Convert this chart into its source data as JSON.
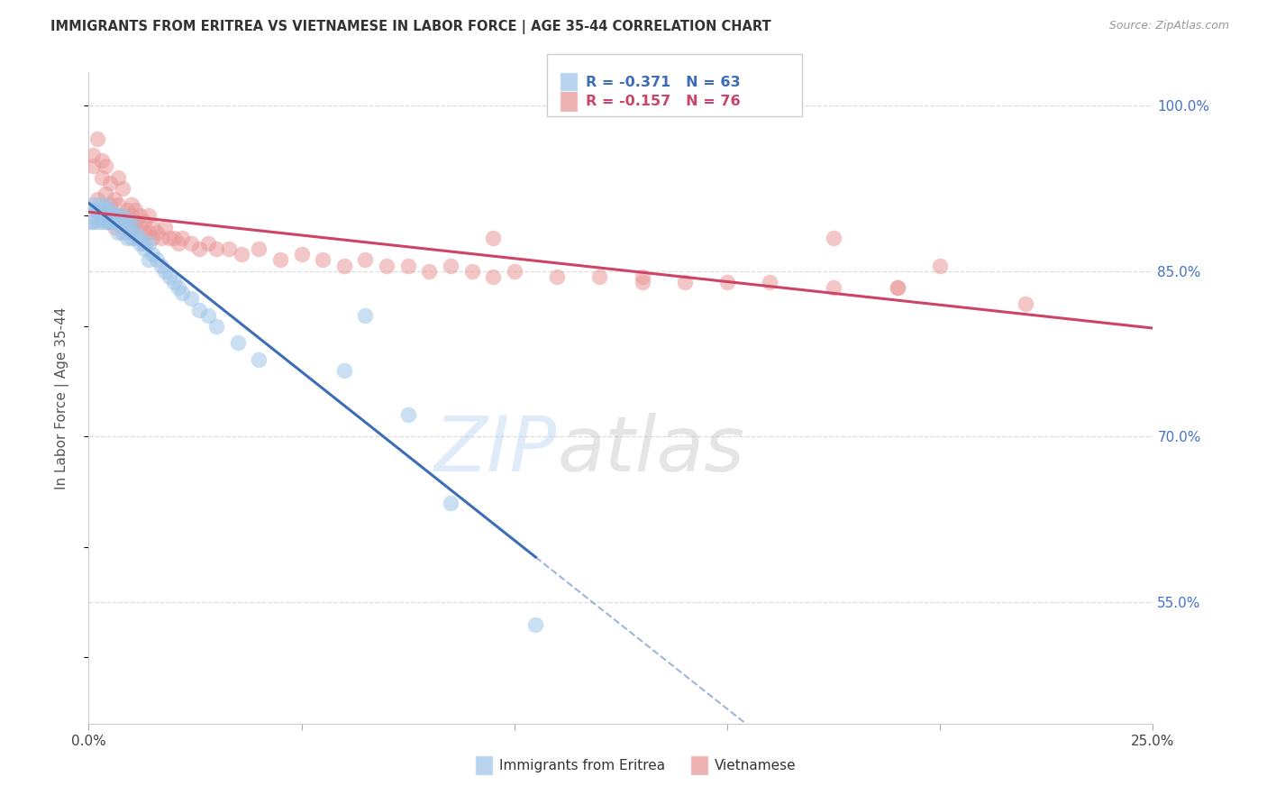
{
  "title": "IMMIGRANTS FROM ERITREA VS VIETNAMESE IN LABOR FORCE | AGE 35-44 CORRELATION CHART",
  "source": "Source: ZipAtlas.com",
  "ylabel": "In Labor Force | Age 35-44",
  "xlim": [
    0.0,
    0.25
  ],
  "ylim": [
    0.44,
    1.03
  ],
  "yticks_right": [
    0.55,
    0.7,
    0.85,
    1.0
  ],
  "ytick_right_labels": [
    "55.0%",
    "70.0%",
    "85.0%",
    "100.0%"
  ],
  "legend_blue_r": "R = -0.371",
  "legend_blue_n": "N = 63",
  "legend_pink_r": "R = -0.157",
  "legend_pink_n": "N = 76",
  "label_eritrea": "Immigrants from Eritrea",
  "label_vietnamese": "Vietnamese",
  "blue_scatter_color": "#9fc5e8",
  "pink_scatter_color": "#ea9999",
  "blue_line_color": "#3d6eb5",
  "pink_line_color": "#cc4466",
  "eritrea_x": [
    0.0005,
    0.001,
    0.001,
    0.0015,
    0.002,
    0.002,
    0.0025,
    0.003,
    0.003,
    0.003,
    0.0035,
    0.004,
    0.004,
    0.004,
    0.0045,
    0.005,
    0.005,
    0.005,
    0.005,
    0.006,
    0.006,
    0.006,
    0.006,
    0.007,
    0.007,
    0.007,
    0.0075,
    0.008,
    0.008,
    0.008,
    0.009,
    0.009,
    0.009,
    0.01,
    0.01,
    0.01,
    0.011,
    0.011,
    0.012,
    0.012,
    0.013,
    0.013,
    0.014,
    0.014,
    0.015,
    0.016,
    0.017,
    0.018,
    0.019,
    0.02,
    0.021,
    0.022,
    0.024,
    0.026,
    0.028,
    0.03,
    0.035,
    0.04,
    0.06,
    0.065,
    0.075,
    0.085,
    0.105
  ],
  "eritrea_y": [
    0.895,
    0.91,
    0.895,
    0.905,
    0.895,
    0.905,
    0.91,
    0.895,
    0.905,
    0.9,
    0.9,
    0.895,
    0.905,
    0.91,
    0.895,
    0.9,
    0.895,
    0.895,
    0.905,
    0.9,
    0.895,
    0.9,
    0.895,
    0.9,
    0.895,
    0.885,
    0.895,
    0.895,
    0.885,
    0.9,
    0.89,
    0.88,
    0.895,
    0.885,
    0.895,
    0.88,
    0.885,
    0.88,
    0.88,
    0.875,
    0.875,
    0.87,
    0.875,
    0.86,
    0.865,
    0.86,
    0.855,
    0.85,
    0.845,
    0.84,
    0.835,
    0.83,
    0.825,
    0.815,
    0.81,
    0.8,
    0.785,
    0.77,
    0.76,
    0.81,
    0.72,
    0.64,
    0.53
  ],
  "vietnamese_x": [
    0.001,
    0.001,
    0.002,
    0.002,
    0.003,
    0.003,
    0.003,
    0.004,
    0.004,
    0.005,
    0.005,
    0.005,
    0.006,
    0.006,
    0.006,
    0.007,
    0.007,
    0.007,
    0.008,
    0.008,
    0.008,
    0.009,
    0.009,
    0.01,
    0.01,
    0.01,
    0.011,
    0.011,
    0.012,
    0.012,
    0.013,
    0.013,
    0.014,
    0.014,
    0.015,
    0.015,
    0.016,
    0.017,
    0.018,
    0.019,
    0.02,
    0.021,
    0.022,
    0.024,
    0.026,
    0.028,
    0.03,
    0.033,
    0.036,
    0.04,
    0.045,
    0.05,
    0.055,
    0.06,
    0.065,
    0.07,
    0.075,
    0.08,
    0.085,
    0.09,
    0.095,
    0.1,
    0.11,
    0.12,
    0.13,
    0.14,
    0.15,
    0.16,
    0.175,
    0.19,
    0.095,
    0.13,
    0.175,
    0.19,
    0.2,
    0.22
  ],
  "vietnamese_y": [
    0.955,
    0.945,
    0.915,
    0.97,
    0.935,
    0.95,
    0.9,
    0.92,
    0.945,
    0.895,
    0.91,
    0.93,
    0.9,
    0.915,
    0.89,
    0.91,
    0.895,
    0.935,
    0.9,
    0.925,
    0.89,
    0.905,
    0.895,
    0.9,
    0.91,
    0.89,
    0.895,
    0.905,
    0.9,
    0.89,
    0.885,
    0.895,
    0.885,
    0.9,
    0.89,
    0.88,
    0.885,
    0.88,
    0.89,
    0.88,
    0.88,
    0.875,
    0.88,
    0.875,
    0.87,
    0.875,
    0.87,
    0.87,
    0.865,
    0.87,
    0.86,
    0.865,
    0.86,
    0.855,
    0.86,
    0.855,
    0.855,
    0.85,
    0.855,
    0.85,
    0.845,
    0.85,
    0.845,
    0.845,
    0.845,
    0.84,
    0.84,
    0.84,
    0.835,
    0.835,
    0.88,
    0.84,
    0.88,
    0.835,
    0.855,
    0.82
  ]
}
